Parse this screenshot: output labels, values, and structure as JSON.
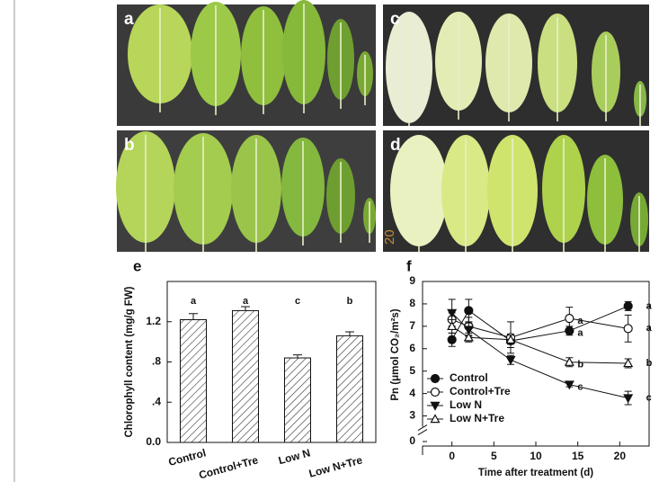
{
  "photo_labels": [
    "a",
    "b",
    "c",
    "d"
  ],
  "photo_watermark": "20",
  "chart_data": [
    {
      "type": "bar",
      "panel": "e",
      "y_label": "Chlorophyll content (mg/g FW)",
      "categories": [
        "Control",
        "Control+Tre",
        "Low N",
        "Low N+Tre"
      ],
      "values": [
        1.22,
        1.31,
        0.84,
        1.06
      ],
      "errors": [
        0.06,
        0.04,
        0.03,
        0.04
      ],
      "significance": [
        "a",
        "a",
        "c",
        "b"
      ],
      "ylim": [
        0,
        1.6
      ],
      "yticks": [
        {
          "value": 0,
          "label": "0.0"
        },
        {
          "value": 0.4,
          "label": ".4"
        },
        {
          "value": 0.8,
          "label": ".8"
        },
        1.2
      ],
      "color": "#111111",
      "hatch": true
    },
    {
      "type": "line",
      "panel": "f",
      "y_label": "Pn (μmol CO₂/m²s)",
      "x_label": "Time after treatment (d)",
      "x": [
        0,
        2,
        7,
        14,
        21
      ],
      "xlim": [
        -3.5,
        23.5
      ],
      "xticks": [
        0,
        5,
        10,
        15,
        20
      ],
      "ylim": [
        0,
        9
      ],
      "ybreak": [
        0,
        3
      ],
      "yticks": [
        0,
        3,
        4,
        5,
        6,
        7,
        8,
        9
      ],
      "legend": "lower-left",
      "series": [
        {
          "name": "Control",
          "marker": "circle",
          "filled": true,
          "color": "#111111",
          "values": [
            6.4,
            7.7,
            6.35,
            6.8,
            7.9
          ],
          "errors": [
            0.3,
            0.5,
            0.3,
            0.2,
            0.2
          ],
          "significance": [
            "a",
            "a"
          ]
        },
        {
          "name": "Control+Tre",
          "marker": "circle",
          "filled": false,
          "color": "#111111",
          "values": [
            7.3,
            7.0,
            6.5,
            7.35,
            6.9
          ],
          "errors": [
            0.3,
            0.4,
            0.7,
            0.5,
            0.6
          ],
          "significance": [
            "a",
            "a"
          ]
        },
        {
          "name": "Low N",
          "marker": "triangle-down",
          "filled": true,
          "color": "#111111",
          "values": [
            7.6,
            6.85,
            5.5,
            4.4,
            3.8
          ],
          "errors": [
            0.6,
            0.3,
            0.2,
            0.1,
            0.3
          ],
          "significance": [
            "c",
            "c"
          ]
        },
        {
          "name": "Low N+Tre",
          "marker": "triangle-up",
          "filled": false,
          "color": "#111111",
          "values": [
            7.0,
            6.5,
            6.4,
            5.4,
            5.35
          ],
          "errors": [
            0.3,
            0.2,
            0.2,
            0.2,
            0.2
          ],
          "significance": [
            "b",
            "b"
          ]
        }
      ]
    }
  ]
}
